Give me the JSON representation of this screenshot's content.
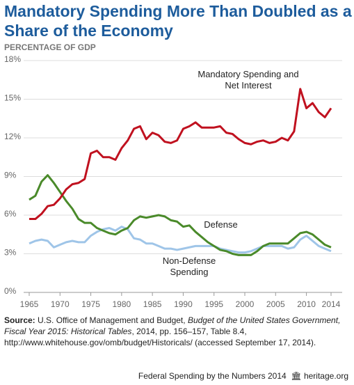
{
  "chart_data": {
    "type": "line",
    "title": "Mandatory Spending More Than Doubled as a Share of the Economy",
    "y_label": "PERCENTAGE OF GDP",
    "x": [
      1965,
      1966,
      1967,
      1968,
      1969,
      1970,
      1971,
      1972,
      1973,
      1974,
      1975,
      1976,
      1977,
      1978,
      1979,
      1980,
      1981,
      1982,
      1983,
      1984,
      1985,
      1986,
      1987,
      1988,
      1989,
      1990,
      1991,
      1992,
      1993,
      1994,
      1995,
      1996,
      1997,
      1998,
      1999,
      2000,
      2001,
      2002,
      2003,
      2004,
      2005,
      2006,
      2007,
      2008,
      2009,
      2010,
      2011,
      2012,
      2013,
      2014
    ],
    "xlim": [
      1965,
      2014
    ],
    "xticks": [
      1965,
      1970,
      1975,
      1980,
      1985,
      1990,
      1995,
      2000,
      2005,
      2010,
      2014
    ],
    "ylim": [
      0,
      18
    ],
    "yticks": [
      {
        "value": 0,
        "label": "0%"
      },
      {
        "value": 3,
        "label": "3%"
      },
      {
        "value": 6,
        "label": "6%"
      },
      {
        "value": 9,
        "label": "9%"
      },
      {
        "value": 12,
        "label": "12%"
      },
      {
        "value": 15,
        "label": "15%"
      },
      {
        "value": 18,
        "label": "18%"
      }
    ],
    "grid": true,
    "series": [
      {
        "name": "Mandatory Spending and Net Interest",
        "color": "#c0111f",
        "values": [
          5.7,
          5.7,
          6.1,
          6.7,
          6.8,
          7.3,
          8.0,
          8.4,
          8.5,
          8.8,
          10.8,
          11.0,
          10.5,
          10.5,
          10.3,
          11.2,
          11.8,
          12.7,
          12.9,
          11.9,
          12.4,
          12.2,
          11.7,
          11.6,
          11.8,
          12.7,
          12.9,
          13.2,
          12.8,
          12.8,
          12.8,
          12.9,
          12.4,
          12.3,
          11.9,
          11.6,
          11.5,
          11.7,
          11.8,
          11.6,
          11.7,
          12.0,
          11.8,
          12.5,
          15.8,
          14.3,
          14.7,
          14.0,
          13.6,
          14.3
        ]
      },
      {
        "name": "Defense",
        "color": "#4a8a2a",
        "values": [
          7.2,
          7.5,
          8.6,
          9.1,
          8.5,
          7.8,
          7.1,
          6.5,
          5.7,
          5.4,
          5.4,
          5.0,
          4.8,
          4.6,
          4.5,
          4.8,
          5.0,
          5.6,
          5.9,
          5.8,
          5.9,
          6.0,
          5.9,
          5.6,
          5.5,
          5.1,
          5.2,
          4.7,
          4.3,
          3.9,
          3.6,
          3.3,
          3.2,
          3.0,
          2.9,
          2.9,
          2.9,
          3.2,
          3.6,
          3.8,
          3.8,
          3.8,
          3.8,
          4.2,
          4.6,
          4.7,
          4.5,
          4.1,
          3.7,
          3.5
        ]
      },
      {
        "name": "Non-Defense Spending",
        "color": "#9fc5e8",
        "values": [
          3.8,
          4.0,
          4.1,
          4.0,
          3.5,
          3.7,
          3.9,
          4.0,
          3.9,
          3.9,
          4.4,
          4.7,
          4.9,
          5.0,
          4.8,
          5.1,
          4.9,
          4.2,
          4.1,
          3.8,
          3.8,
          3.6,
          3.4,
          3.4,
          3.3,
          3.4,
          3.5,
          3.6,
          3.6,
          3.6,
          3.6,
          3.4,
          3.3,
          3.2,
          3.1,
          3.1,
          3.2,
          3.4,
          3.6,
          3.6,
          3.6,
          3.6,
          3.4,
          3.5,
          4.1,
          4.4,
          4.0,
          3.6,
          3.4,
          3.2
        ]
      }
    ],
    "source_label": "Source:",
    "source_parts": [
      "U.S. Office of Management and Budget, ",
      "Budget of the United States Government, Fiscal Year 2015: Historical Tables",
      ", 2014, pp. 156–157, Table 8.4, http://www.whitehouse.gov/omb/budget/Historicals/ (accessed September 17, 2014)."
    ],
    "footer": "Federal Spending by the Numbers 2014",
    "site": "heritage.org"
  }
}
